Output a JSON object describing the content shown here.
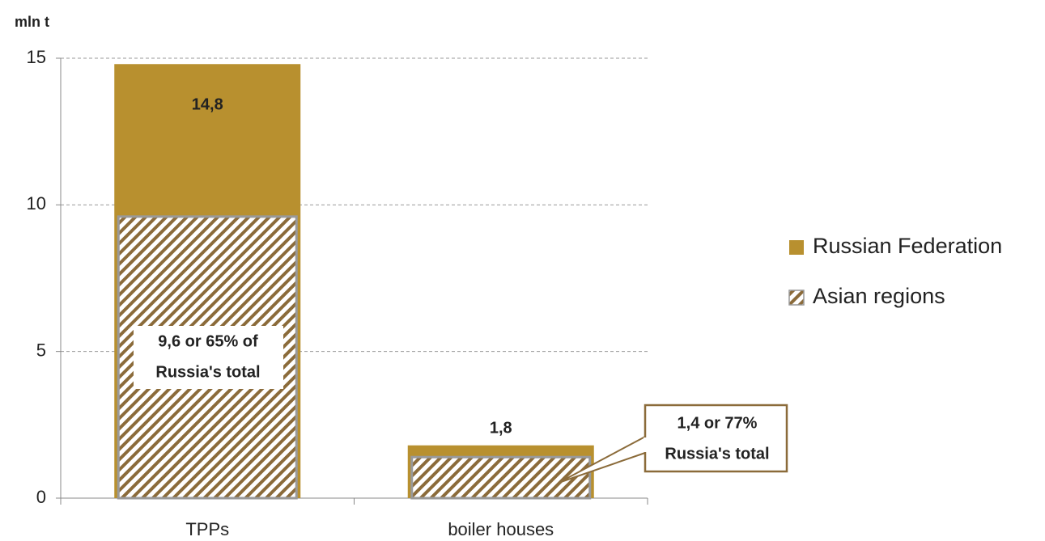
{
  "chart_data": {
    "type": "bar",
    "y_label": "mln t",
    "categories": [
      "TPPs",
      "boiler houses"
    ],
    "series": [
      {
        "name": "Russian Federation",
        "color": "#b8902f",
        "values": [
          14.8,
          1.8
        ],
        "value_labels": [
          "14,8",
          "1,8"
        ]
      },
      {
        "name": "Asian regions",
        "color": "#8b6b3a",
        "values": [
          9.6,
          1.4
        ]
      }
    ],
    "annotations": [
      {
        "lines": [
          "9,6 or 65% of",
          "Russia's total"
        ]
      },
      {
        "lines": [
          "1,4 or 77%",
          "Russia's total"
        ]
      }
    ],
    "ylim": [
      0,
      15
    ],
    "yticks": [
      0,
      5,
      10,
      15
    ],
    "grid": true,
    "legend": "right"
  }
}
